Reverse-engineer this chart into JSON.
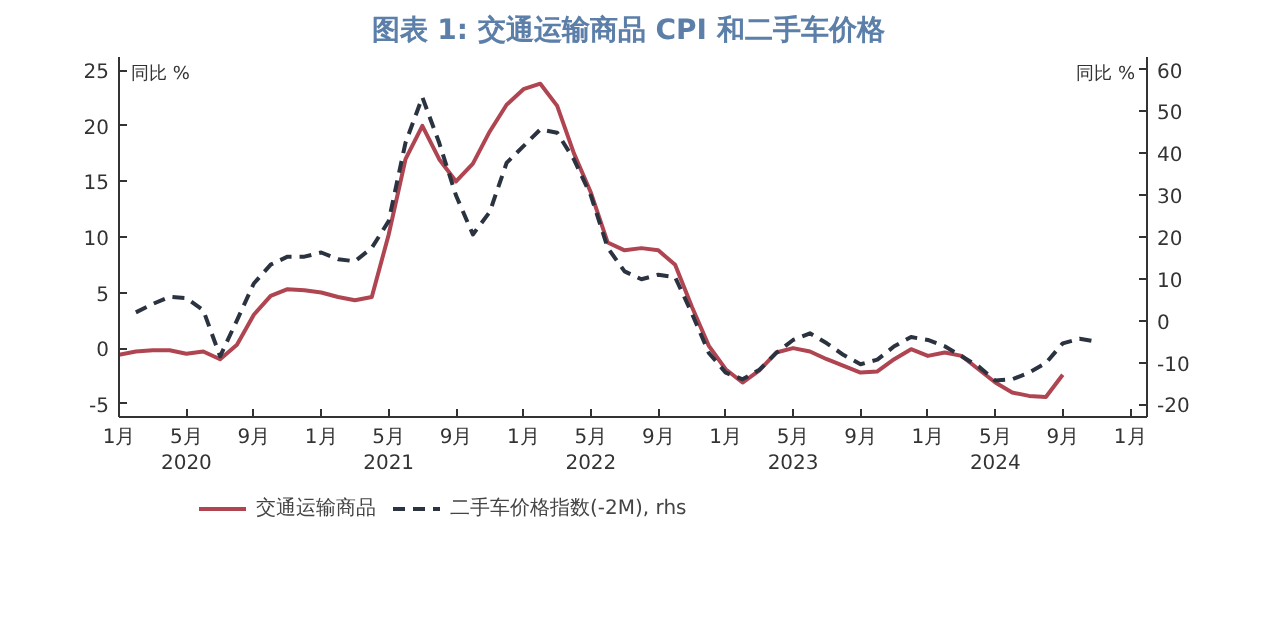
{
  "chart_data": {
    "type": "line",
    "title": "图表 1:  交通运输商品 CPI 和二手车价格",
    "ylabel": "同比 %",
    "y2label": "同比 %",
    "x": [
      "2020-01",
      "2020-02",
      "2020-03",
      "2020-04",
      "2020-05",
      "2020-06",
      "2020-07",
      "2020-08",
      "2020-09",
      "2020-10",
      "2020-11",
      "2020-12",
      "2021-01",
      "2021-02",
      "2021-03",
      "2021-04",
      "2021-05",
      "2021-06",
      "2021-07",
      "2021-08",
      "2021-09",
      "2021-10",
      "2021-11",
      "2021-12",
      "2022-01",
      "2022-02",
      "2022-03",
      "2022-04",
      "2022-05",
      "2022-06",
      "2022-07",
      "2022-08",
      "2022-09",
      "2022-10",
      "2022-11",
      "2022-12",
      "2023-01",
      "2023-02",
      "2023-03",
      "2023-04",
      "2023-05",
      "2023-06",
      "2023-07",
      "2023-08",
      "2023-09",
      "2023-10",
      "2023-11",
      "2023-12",
      "2024-01",
      "2024-02",
      "2024-03",
      "2024-04",
      "2024-05",
      "2024-06",
      "2024-07",
      "2024-08",
      "2024-09",
      "2024-10",
      "2024-11"
    ],
    "series": [
      {
        "name": "交通运输商品",
        "color": "#b04552",
        "line_style": "solid",
        "values": [
          -0.6,
          -0.3,
          -0.2,
          -0.2,
          -0.5,
          -0.3,
          -1.0,
          0.3,
          3.0,
          4.7,
          5.3,
          5.2,
          5.0,
          4.6,
          4.3,
          4.6,
          10.2,
          17.0,
          20.0,
          17.0,
          15.0,
          16.6,
          19.5,
          21.9,
          23.3,
          23.8,
          21.8,
          17.5,
          14.0,
          9.5,
          8.8,
          9.0,
          8.8,
          7.5,
          3.7,
          0.2,
          -1.9,
          -3.1,
          -2.0,
          -0.4,
          0.0,
          -0.3,
          -1.0,
          -1.6,
          -2.2,
          -2.1,
          -1.0,
          -0.1,
          -0.7,
          -0.4,
          -0.7,
          -1.9,
          -3.1,
          -4.0,
          -4.3,
          -4.4,
          -2.4,
          null,
          null
        ]
      },
      {
        "name": "二手车价格指数(-2M), rhs",
        "color": "#2b3340",
        "line_style": "dashed",
        "axis": "y2",
        "values": [
          null,
          2,
          4,
          5.7,
          5.4,
          2.5,
          -8.5,
          0.1,
          8.9,
          13.4,
          15.3,
          15.3,
          16.3,
          14.7,
          14.2,
          17.4,
          23.8,
          42.5,
          53.4,
          42.5,
          29.9,
          20.6,
          26,
          37.7,
          41.7,
          45.7,
          44.9,
          38.5,
          29.9,
          17.4,
          11.8,
          9.9,
          11,
          10.4,
          1.7,
          -7.7,
          -12.4,
          -14,
          -11.7,
          -7.7,
          -4.6,
          -3,
          -5.4,
          -8.2,
          -10.4,
          -9.3,
          -6.1,
          -3.9,
          -4.6,
          -6.1,
          -8.5,
          -10.9,
          -14.3,
          -14,
          -12.4,
          -10.1,
          -5.4,
          -4.3,
          -5
        ]
      }
    ],
    "xlim": [
      "2020-01",
      "2025-02"
    ],
    "xticks": [
      {
        "value": "2020-01",
        "label": "1月"
      },
      {
        "value": "2020-05",
        "label": "5月\n2020"
      },
      {
        "value": "2020-09",
        "label": "9月"
      },
      {
        "value": "2021-01",
        "label": "1月"
      },
      {
        "value": "2021-05",
        "label": "5月\n2021"
      },
      {
        "value": "2021-09",
        "label": "9月"
      },
      {
        "value": "2022-01",
        "label": "1月"
      },
      {
        "value": "2022-05",
        "label": "5月\n2022"
      },
      {
        "value": "2022-09",
        "label": "9月"
      },
      {
        "value": "2023-01",
        "label": "1月"
      },
      {
        "value": "2023-05",
        "label": "5月\n2023"
      },
      {
        "value": "2023-09",
        "label": "9月"
      },
      {
        "value": "2024-01",
        "label": "1月"
      },
      {
        "value": "2024-05",
        "label": "5月\n2024"
      },
      {
        "value": "2024-09",
        "label": "9月"
      },
      {
        "value": "2025-01",
        "label": "1月"
      }
    ],
    "ylim": [
      -6.2,
      26.2
    ],
    "yticks": [
      -5,
      0,
      5,
      10,
      15,
      20,
      25
    ],
    "y2lim": [
      -23,
      63
    ],
    "y2ticks": [
      -20,
      -10,
      0,
      10,
      20,
      30,
      40,
      50,
      60
    ],
    "grid": false,
    "legend": "bottom",
    "marker": "none"
  }
}
